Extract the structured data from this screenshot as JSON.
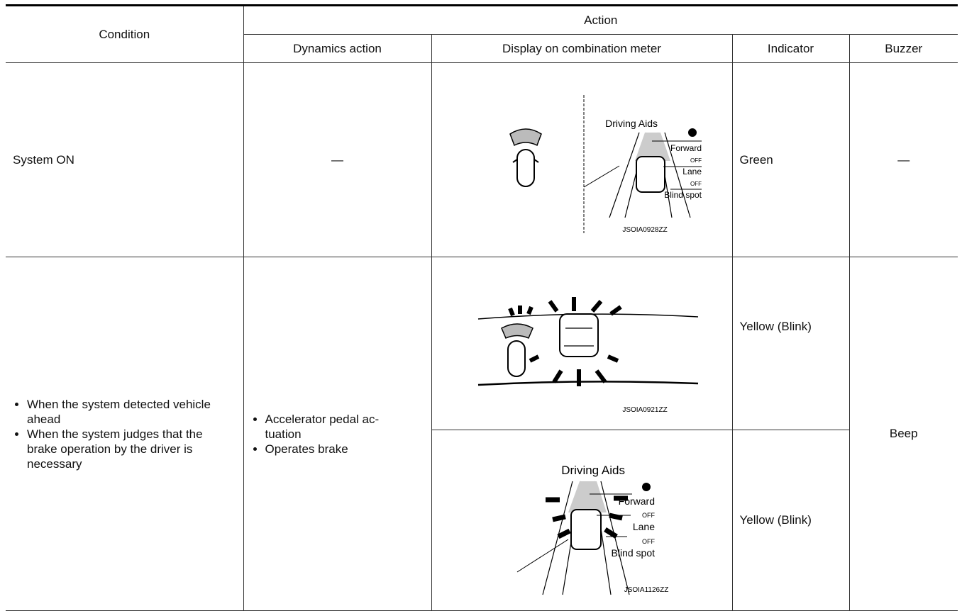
{
  "table": {
    "header": {
      "condition": "Condition",
      "action": "Action",
      "columns": [
        "Dynamics action",
        "Display on combination meter",
        "Indicator",
        "Buzzer"
      ]
    },
    "rows": [
      {
        "condition": "System ON",
        "dynamics": "—",
        "display": {
          "labels": [
            "Driving Aids",
            "Forward",
            "OFF",
            "Lane",
            "OFF",
            "Blind spot"
          ],
          "code": "JSOIA0928ZZ"
        },
        "indicator": "Green",
        "buzzer": "—"
      },
      {
        "condition": [
          "When the system detected vehicle ahead",
          "When the system judges that the brake operation by the driver is necessary"
        ],
        "dynamics": [
          "Accelerator pedal ac-tuation",
          "Operates brake"
        ],
        "displays": [
          {
            "code": "JSOIA0921ZZ",
            "indicator": "Yellow (Blink)"
          },
          {
            "labels": [
              "Driving Aids",
              "Forward",
              "OFF",
              "Lane",
              "OFF",
              "Blind spot"
            ],
            "code": "JSOIA1126ZZ",
            "indicator": "Yellow (Blink)"
          }
        ],
        "buzzer": "Beep"
      }
    ]
  }
}
